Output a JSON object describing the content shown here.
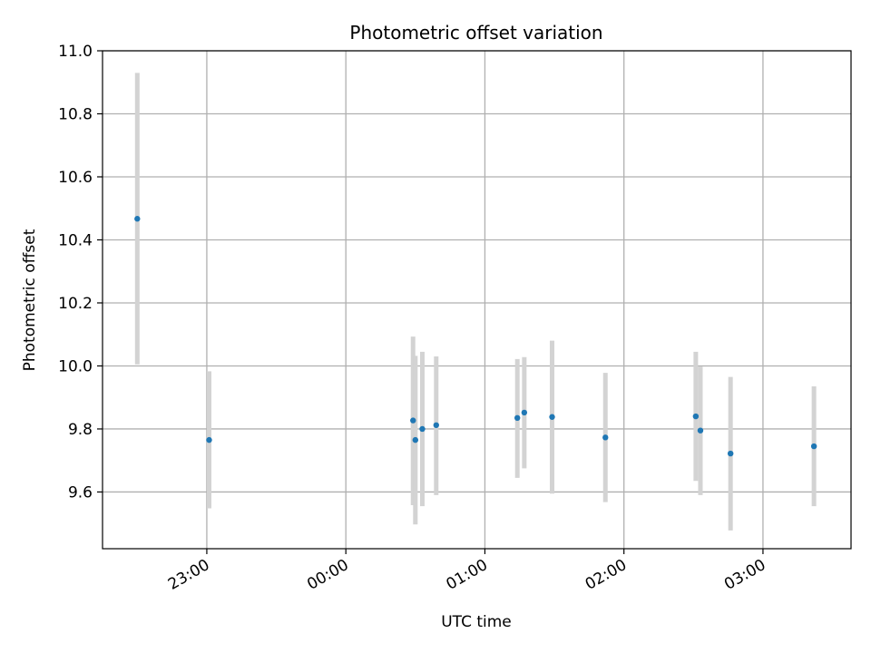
{
  "chart_data": {
    "type": "scatter",
    "title": "Photometric offset variation",
    "xlabel": "UTC time",
    "ylabel": "Photometric offset",
    "grid": true,
    "ylim": [
      9.42,
      11.0
    ],
    "xlim": [
      "22:15",
      "03:38"
    ],
    "y_ticks": [
      9.6,
      9.8,
      10.0,
      10.2,
      10.4,
      10.6,
      10.8,
      11.0
    ],
    "y_tick_labels": [
      "9.6",
      "9.8",
      "10.0",
      "10.2",
      "10.4",
      "10.6",
      "10.8",
      "11.0"
    ],
    "x_ticks": [
      "23:00",
      "00:00",
      "01:00",
      "02:00",
      "03:00"
    ],
    "x_tick_labels": [
      "23:00",
      "00:00",
      "01:00",
      "02:00",
      "03:00"
    ],
    "errorbar_color": "#d3d3d3",
    "marker_color": "#1f77b4",
    "series": [
      {
        "points": [
          {
            "x": "22:30",
            "y": 10.467,
            "ylow": 10.005,
            "yhigh": 10.93
          },
          {
            "x": "23:01",
            "y": 9.765,
            "ylow": 9.548,
            "yhigh": 9.983
          },
          {
            "x": "00:29",
            "y": 9.827,
            "ylow": 9.558,
            "yhigh": 10.093
          },
          {
            "x": "00:30",
            "y": 9.765,
            "ylow": 9.497,
            "yhigh": 10.032
          },
          {
            "x": "00:33",
            "y": 9.8,
            "ylow": 9.555,
            "yhigh": 10.045
          },
          {
            "x": "00:39",
            "y": 9.812,
            "ylow": 9.59,
            "yhigh": 10.03
          },
          {
            "x": "01:14",
            "y": 9.835,
            "ylow": 9.645,
            "yhigh": 10.022
          },
          {
            "x": "01:17",
            "y": 9.852,
            "ylow": 9.675,
            "yhigh": 10.028
          },
          {
            "x": "01:29",
            "y": 9.838,
            "ylow": 9.595,
            "yhigh": 10.08
          },
          {
            "x": "01:52",
            "y": 9.773,
            "ylow": 9.568,
            "yhigh": 9.978
          },
          {
            "x": "02:31",
            "y": 9.84,
            "ylow": 9.635,
            "yhigh": 10.045
          },
          {
            "x": "02:33",
            "y": 9.795,
            "ylow": 9.59,
            "yhigh": 9.998
          },
          {
            "x": "02:46",
            "y": 9.722,
            "ylow": 9.478,
            "yhigh": 9.965
          },
          {
            "x": "03:22",
            "y": 9.745,
            "ylow": 9.555,
            "yhigh": 9.935
          }
        ]
      }
    ]
  }
}
